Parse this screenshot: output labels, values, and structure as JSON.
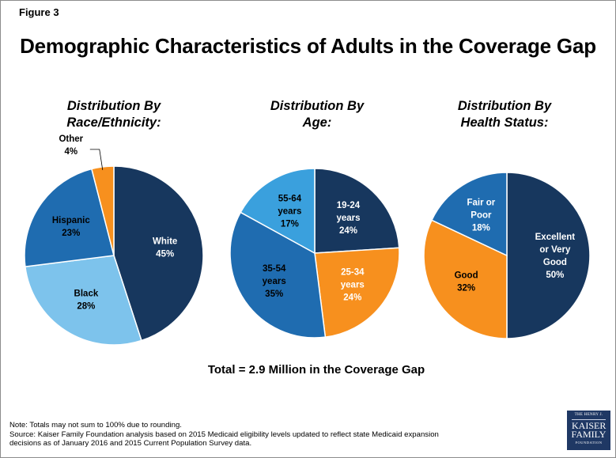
{
  "figure_label": "Figure 3",
  "title": "Demographic Characteristics of Adults in the Coverage Gap",
  "total_text": "Total = 2.9 Million in the Coverage Gap",
  "notes": [
    "Note: Totals may not sum to 100% due to rounding.",
    "Source: Kaiser Family Foundation analysis based on 2015 Medicaid eligibility levels updated to reflect state Medicaid expansion",
    "decisions as of January 2016 and 2015 Current Population Survey data."
  ],
  "logo": {
    "line1": "THE HENRY J.",
    "line2": "KAISER",
    "line3": "FAMILY",
    "line4": "FOUNDATION"
  },
  "colors": {
    "navy": "#17375e",
    "light_blue": "#7dc3ec",
    "mid_blue": "#1f6cb0",
    "orange": "#f7901e",
    "sky_blue": "#3aa0dd"
  },
  "chart_data": [
    {
      "type": "pie",
      "title_lines": [
        "Distribution By",
        "Race/Ethnicity:"
      ],
      "slices": [
        {
          "label_lines": [
            "White",
            "45%"
          ],
          "label": "White",
          "value": 45,
          "color": "#17375e",
          "text_color": "#ffffff"
        },
        {
          "label_lines": [
            "Black",
            "28%"
          ],
          "label": "Black",
          "value": 28,
          "color": "#7dc3ec",
          "text_color": "#000000"
        },
        {
          "label_lines": [
            "Hispanic",
            "23%"
          ],
          "label": "Hispanic",
          "value": 23,
          "color": "#1f6cb0",
          "text_color": "#000000"
        },
        {
          "label_lines": [
            "Other",
            "4%"
          ],
          "label": "Other",
          "value": 4,
          "color": "#f7901e",
          "text_color": "#000000",
          "outside": true
        }
      ]
    },
    {
      "type": "pie",
      "title_lines": [
        "Distribution By",
        "Age:"
      ],
      "slices": [
        {
          "label_lines": [
            "19-24",
            "years",
            "24%"
          ],
          "label": "19-24 years",
          "value": 24,
          "color": "#17375e",
          "text_color": "#ffffff"
        },
        {
          "label_lines": [
            "25-34",
            "years",
            "24%"
          ],
          "label": "25-34 years",
          "value": 24,
          "color": "#f7901e",
          "text_color": "#ffffff"
        },
        {
          "label_lines": [
            "35-54",
            "years",
            "35%"
          ],
          "label": "35-54 years",
          "value": 35,
          "color": "#1f6cb0",
          "text_color": "#000000"
        },
        {
          "label_lines": [
            "55-64",
            "years",
            "17%"
          ],
          "label": "55-64 years",
          "value": 17,
          "color": "#3aa0dd",
          "text_color": "#000000"
        }
      ]
    },
    {
      "type": "pie",
      "title_lines": [
        "Distribution By",
        "Health Status:"
      ],
      "slices": [
        {
          "label_lines": [
            "Excellent",
            "or Very",
            "Good",
            "50%"
          ],
          "label": "Excellent or Very Good",
          "value": 50,
          "color": "#17375e",
          "text_color": "#ffffff"
        },
        {
          "label_lines": [
            "Good",
            "32%"
          ],
          "label": "Good",
          "value": 32,
          "color": "#f7901e",
          "text_color": "#000000"
        },
        {
          "label_lines": [
            "Fair or",
            "Poor",
            "18%"
          ],
          "label": "Fair or Poor",
          "value": 18,
          "color": "#1f6cb0",
          "text_color": "#ffffff"
        }
      ]
    }
  ]
}
